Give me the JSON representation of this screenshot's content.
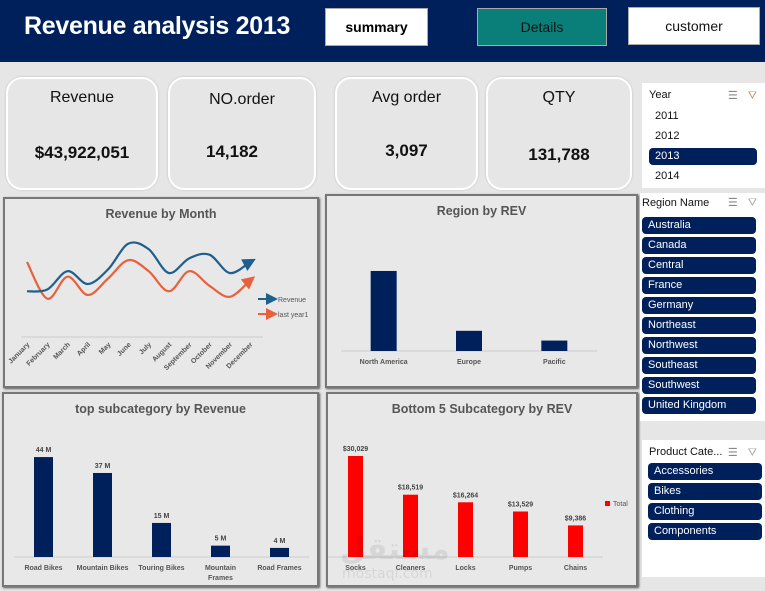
{
  "header": {
    "title": "Revenue analysis 2013",
    "nav": [
      {
        "label": "summary",
        "active": false
      },
      {
        "label": "Details",
        "active": true
      },
      {
        "label": "customer",
        "active": false
      }
    ],
    "colors": {
      "header_bg": "#00205b",
      "active_nav": "#0a7f7a"
    }
  },
  "kpis": [
    {
      "label": "Revenue",
      "value": "$43,922,051"
    },
    {
      "label": "NO.order",
      "value": "14,182"
    },
    {
      "label": "Avg order",
      "value": "3,097"
    },
    {
      "label": "QTY",
      "value": "131,788"
    }
  ],
  "slicers": {
    "year": {
      "title": "Year",
      "items": [
        {
          "label": "2011",
          "selected": false
        },
        {
          "label": "2012",
          "selected": false
        },
        {
          "label": "2013",
          "selected": true
        },
        {
          "label": "2014",
          "selected": false
        }
      ]
    },
    "region": {
      "title": "Region Name",
      "items": [
        {
          "label": "Australia",
          "selected": true
        },
        {
          "label": "Canada",
          "selected": true
        },
        {
          "label": "Central",
          "selected": true
        },
        {
          "label": "France",
          "selected": true
        },
        {
          "label": "Germany",
          "selected": true
        },
        {
          "label": "Northeast",
          "selected": true
        },
        {
          "label": "Northwest",
          "selected": true
        },
        {
          "label": "Southeast",
          "selected": true
        },
        {
          "label": "Southwest",
          "selected": true
        },
        {
          "label": "United Kingdom",
          "selected": true
        }
      ]
    },
    "product": {
      "title": "Product Cate...",
      "items": [
        {
          "label": "Accessories",
          "selected": true
        },
        {
          "label": "Bikes",
          "selected": true
        },
        {
          "label": "Clothing",
          "selected": true
        },
        {
          "label": "Components",
          "selected": true
        }
      ]
    },
    "icons": {
      "multi_select": "multi-select-icon",
      "clear_filter": "clear-filter-icon"
    }
  },
  "chart_data": [
    {
      "id": "revenue_by_month",
      "type": "line",
      "title": "Revenue by Month",
      "categories": [
        "January",
        "February",
        "March",
        "April",
        "May",
        "June",
        "July",
        "August",
        "September",
        "October",
        "November",
        "December"
      ],
      "series": [
        {
          "name": "Revenue",
          "color": "#1f5f8b",
          "values": [
            2.6,
            2.7,
            3.7,
            3.0,
            3.8,
            5.2,
            4.9,
            3.6,
            4.4,
            4.6,
            3.6,
            4.2
          ]
        },
        {
          "name": "last year1",
          "color": "#e8603c",
          "values": [
            4.2,
            2.2,
            3.4,
            2.4,
            3.3,
            4.3,
            3.7,
            2.6,
            3.7,
            2.9,
            2.3,
            3.2
          ]
        }
      ],
      "legend": "right",
      "ylim": [
        0,
        6
      ]
    },
    {
      "id": "region_by_rev",
      "type": "bar",
      "title": "Region by REV",
      "categories": [
        "North America",
        "Europe",
        "Pacific"
      ],
      "values": [
        23.0,
        5.8,
        3.0
      ],
      "color": "#00205b",
      "ylim": [
        0,
        25
      ]
    },
    {
      "id": "top_subcategory",
      "type": "bar",
      "title": "top subcategory  by Revenue",
      "categories": [
        "Road Bikes",
        "Mountain Bikes",
        "Touring Bikes",
        "Mountain Frames",
        "Road Frames"
      ],
      "values": [
        44,
        37,
        15,
        5,
        4
      ],
      "data_labels": [
        "44 M",
        "37 M",
        "15 M",
        "5 M",
        "4 M"
      ],
      "color": "#00205b",
      "ylim": [
        0,
        48
      ]
    },
    {
      "id": "bottom5_subcategory",
      "type": "bar",
      "title": "Bottom 5 Subcategory by REV",
      "categories": [
        "Socks",
        "Cleaners",
        "Locks",
        "Pumps",
        "Chains"
      ],
      "values": [
        30029,
        18519,
        16264,
        13529,
        9386
      ],
      "data_labels": [
        "$30,029",
        "$18,519",
        "$16,264",
        "$13,529",
        "$9,386"
      ],
      "legend_label": "Total",
      "legend": "right",
      "color": "#ff0000",
      "ylim": [
        0,
        33000
      ]
    }
  ],
  "watermark": {
    "arabic": "مستقل",
    "latin": "mostaql.com"
  }
}
